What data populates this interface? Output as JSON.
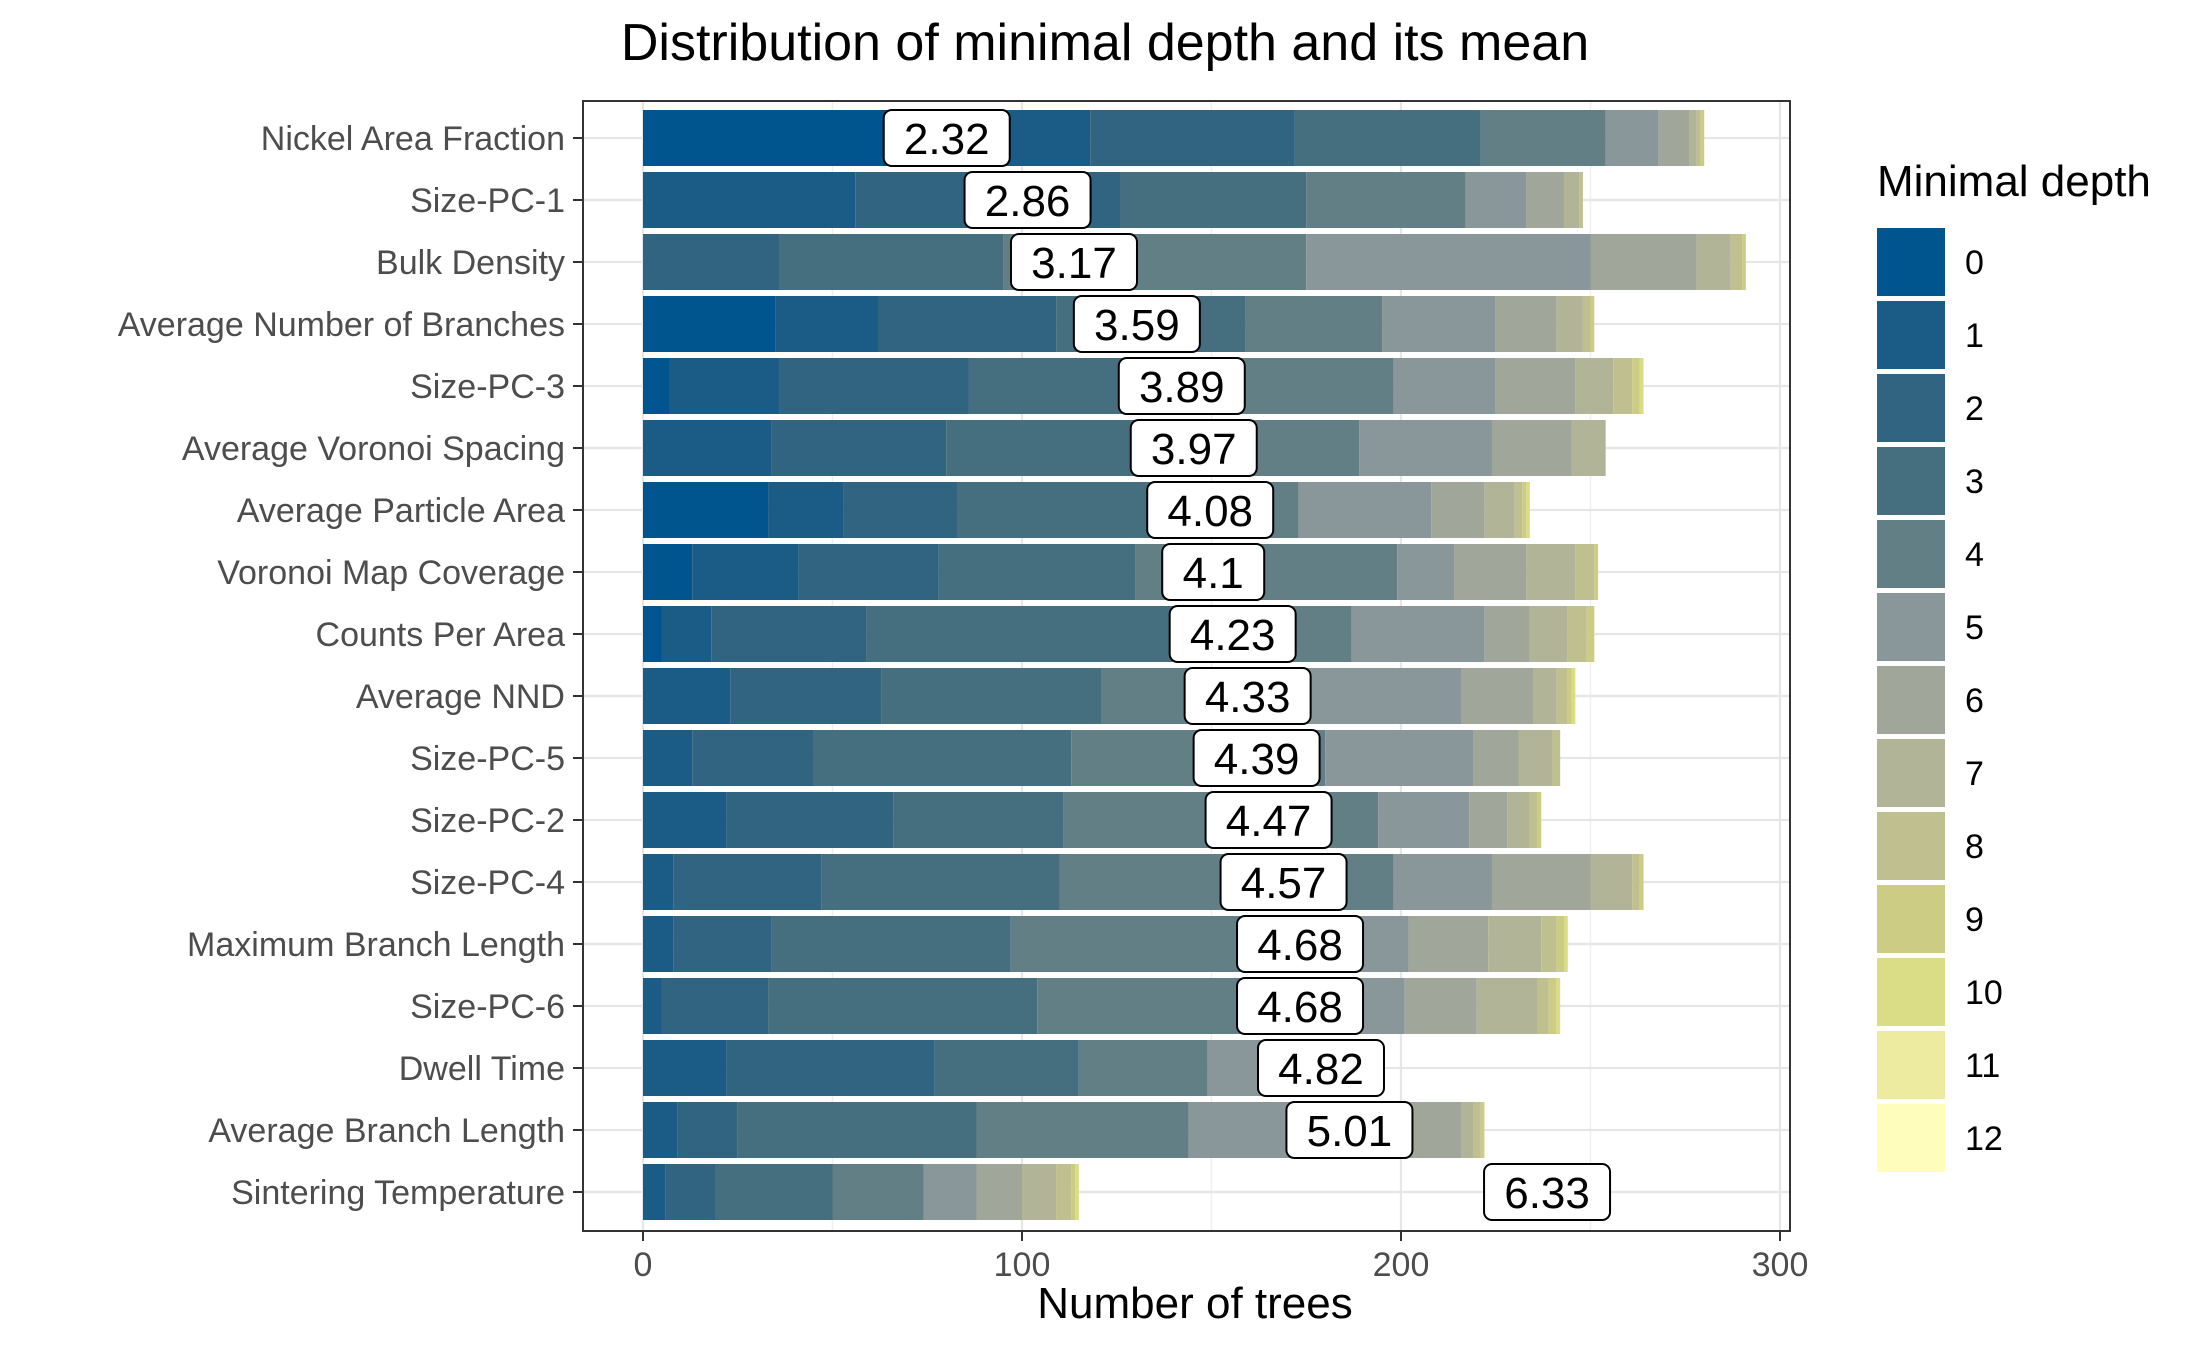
{
  "chart_data": {
    "type": "bar",
    "orientation": "horizontal",
    "stacked": true,
    "title": "Distribution of minimal depth and its mean",
    "xlabel": "Number of trees",
    "ylabel": "",
    "xlim": [
      0,
      305
    ],
    "xticks": [
      "0",
      "100",
      "200",
      "300"
    ],
    "legend": {
      "title": "Minimal depth",
      "position": "right",
      "labels": [
        "0",
        "1",
        "2",
        "3",
        "4",
        "5",
        "6",
        "7",
        "8",
        "9",
        "10",
        "11",
        "12"
      ],
      "colors": [
        "#00558f",
        "#1a5c86",
        "#316481",
        "#456f7f",
        "#627f86",
        "#8a979a",
        "#a1a69b",
        "#b1b497",
        "#bfbf8f",
        "#cccc85",
        "#dbdc86",
        "#eceb9f",
        "#fffdbc"
      ]
    },
    "categories": [
      "Nickel Area Fraction",
      "Size-PC-1",
      "Bulk Density",
      "Average Number of Branches",
      "Size-PC-3",
      "Average Voronoi Spacing",
      "Average Particle Area",
      "Voronoi Map Coverage",
      "Counts Per Area",
      "Average NND",
      "Size-PC-5",
      "Size-PC-2",
      "Size-PC-4",
      "Maximum Branch Length",
      "Size-PC-6",
      "Dwell Time",
      "Average Branch Length",
      "Sintering Temperature"
    ],
    "means": [
      "2.32",
      "2.86",
      "3.17",
      "3.59",
      "3.89",
      "3.97",
      "4.08",
      "4.1",
      "4.23",
      "4.33",
      "4.39",
      "4.47",
      "4.57",
      "4.68",
      "4.68",
      "4.82",
      "5.01",
      "6.33"
    ],
    "segments": [
      [
        71,
        47,
        54,
        49,
        33,
        14,
        8,
        2,
        1,
        1,
        0,
        0,
        0
      ],
      [
        0,
        56,
        70,
        49,
        42,
        16,
        10,
        4,
        1,
        0,
        0,
        0,
        0
      ],
      [
        0,
        0,
        36,
        59,
        80,
        75,
        28,
        9,
        3,
        1,
        0,
        0,
        0
      ],
      [
        35,
        27,
        47,
        50,
        36,
        30,
        16,
        7,
        2,
        1,
        0,
        0,
        0
      ],
      [
        7,
        29,
        50,
        63,
        49,
        27,
        21,
        10,
        5,
        2,
        1,
        0,
        0
      ],
      [
        0,
        34,
        46,
        58,
        51,
        35,
        21,
        9,
        0,
        0,
        0,
        0,
        0
      ],
      [
        33,
        20,
        30,
        57,
        33,
        35,
        14,
        8,
        2,
        1,
        1,
        0,
        0
      ],
      [
        13,
        28,
        37,
        52,
        69,
        15,
        19,
        13,
        5,
        1,
        0,
        0,
        0
      ],
      [
        5,
        13,
        41,
        96,
        32,
        35,
        12,
        10,
        5,
        2,
        0,
        0,
        0
      ],
      [
        0,
        23,
        40,
        58,
        50,
        45,
        19,
        6,
        3,
        1,
        1,
        0,
        0
      ],
      [
        0,
        13,
        32,
        68,
        67,
        39,
        12,
        9,
        2,
        0,
        0,
        0,
        0
      ],
      [
        0,
        22,
        44,
        45,
        83,
        24,
        10,
        6,
        2,
        1,
        0,
        0,
        0
      ],
      [
        0,
        8,
        39,
        63,
        88,
        26,
        26,
        11,
        2,
        1,
        0,
        0,
        0
      ],
      [
        0,
        8,
        26,
        63,
        86,
        19,
        21,
        14,
        4,
        2,
        1,
        0,
        0
      ],
      [
        0,
        5,
        28,
        71,
        75,
        22,
        19,
        16,
        3,
        2,
        1,
        0,
        0
      ],
      [
        0,
        22,
        55,
        38,
        34,
        29,
        0,
        0,
        0,
        0,
        0,
        0,
        0
      ],
      [
        0,
        9,
        16,
        63,
        56,
        46,
        26,
        3,
        2,
        1,
        0,
        0,
        0
      ],
      [
        0,
        6,
        13,
        31,
        24,
        14,
        12,
        9,
        4,
        1,
        1,
        0,
        0
      ]
    ],
    "grid": true
  }
}
